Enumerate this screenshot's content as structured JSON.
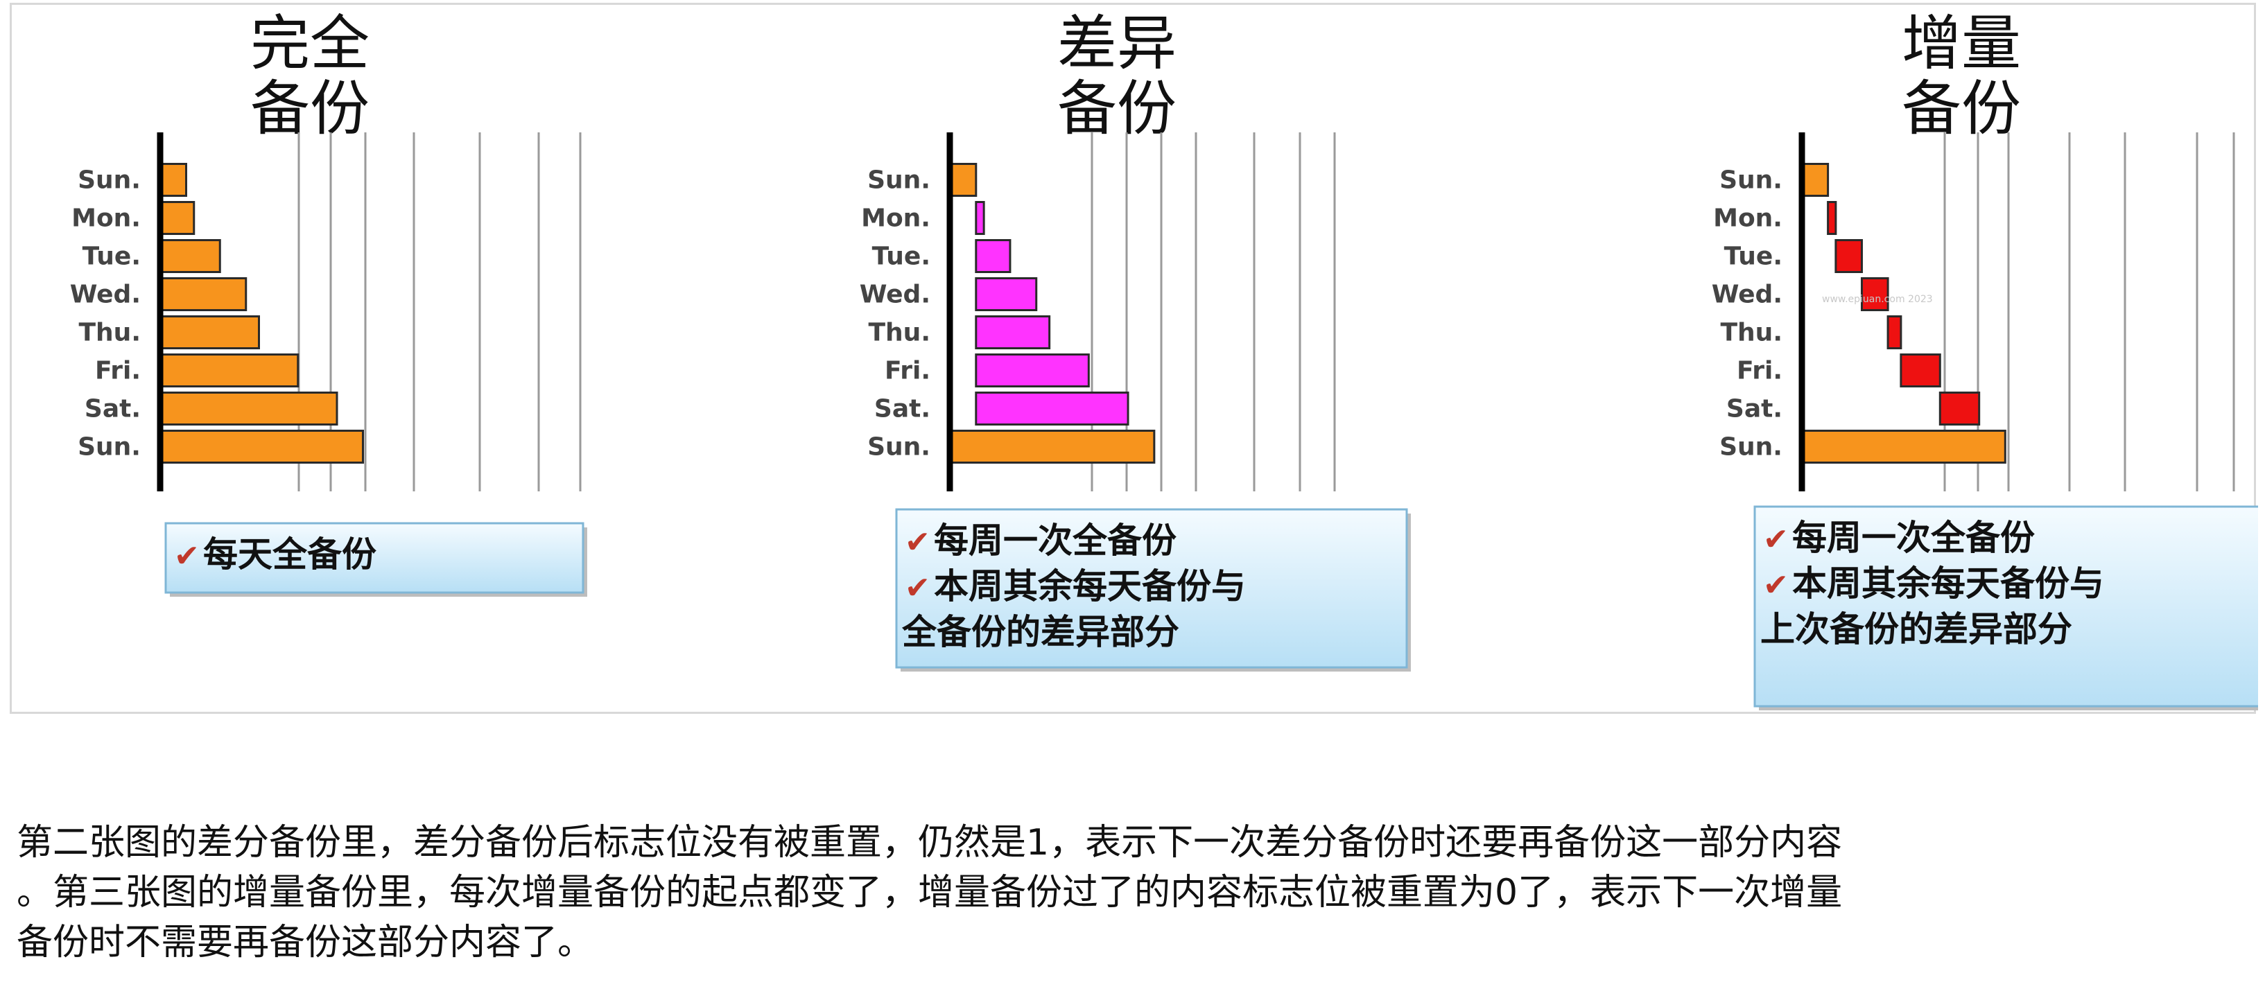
{
  "chart_data": [
    {
      "type": "bar",
      "title": "完全\n备份",
      "categories": [
        "Sun.",
        "Mon.",
        "Tue.",
        "Wed.",
        "Thu.",
        "Fri.",
        "Sat.",
        "Sun."
      ],
      "series": [
        {
          "color": "#f7941d",
          "start": [
            0,
            0,
            0,
            0,
            0,
            0,
            0,
            0
          ],
          "end": [
            1,
            1.3,
            2.3,
            3.3,
            3.8,
            5.3,
            6.8,
            7.8
          ]
        }
      ],
      "x_range": [
        0,
        7.8
      ],
      "note": [
        "每天全备份"
      ]
    },
    {
      "type": "bar",
      "title": "差异\n备份",
      "categories": [
        "Sun.",
        "Mon.",
        "Tue.",
        "Wed.",
        "Thu.",
        "Fri.",
        "Sat.",
        "Sun."
      ],
      "series": [
        {
          "color": "#f7941d",
          "start": [
            0,
            null,
            null,
            null,
            null,
            null,
            null,
            0
          ],
          "end": [
            1,
            null,
            null,
            null,
            null,
            null,
            null,
            7.8
          ]
        },
        {
          "color": "#ff33ff",
          "start": [
            null,
            1,
            1,
            1,
            1,
            1,
            1,
            null
          ],
          "end": [
            null,
            1.3,
            2.3,
            3.3,
            3.8,
            5.3,
            6.8,
            null
          ]
        }
      ],
      "x_range": [
        0,
        7.8
      ],
      "note": [
        "每周一次全备份",
        "本周其余每天备份与",
        "全备份的差异部分"
      ]
    },
    {
      "type": "bar",
      "title": "增量\n备份",
      "categories": [
        "Sun.",
        "Mon.",
        "Tue.",
        "Wed.",
        "Thu.",
        "Fri.",
        "Sat.",
        "Sun."
      ],
      "series": [
        {
          "color": "#f7941d",
          "start": [
            0,
            null,
            null,
            null,
            null,
            null,
            null,
            0
          ],
          "end": [
            1,
            null,
            null,
            null,
            null,
            null,
            null,
            7.8
          ]
        },
        {
          "color": "#ee1111",
          "start": [
            null,
            1,
            1.3,
            2.3,
            3.3,
            3.8,
            5.3,
            null
          ],
          "end": [
            null,
            1.3,
            2.3,
            3.3,
            3.8,
            5.3,
            6.8,
            null
          ]
        }
      ],
      "x_range": [
        0,
        7.8
      ],
      "note": [
        "每周一次全备份",
        "本周其余每天备份与",
        "上次备份的差异部分"
      ]
    }
  ],
  "caption": [
    "第二张图的差分备份里，差分备份后标志位没有被重置，仍然是1，表示下一次差分备份时还要再备份这一部分内容",
    "。第三张图的增量备份里，每次增量备份的起点都变了，增量备份过了的内容标志位被重置为0了，表示下一次增量",
    "备份时不需要再备份这部分内容了。"
  ],
  "watermark": "www.epiuan.com 2023"
}
